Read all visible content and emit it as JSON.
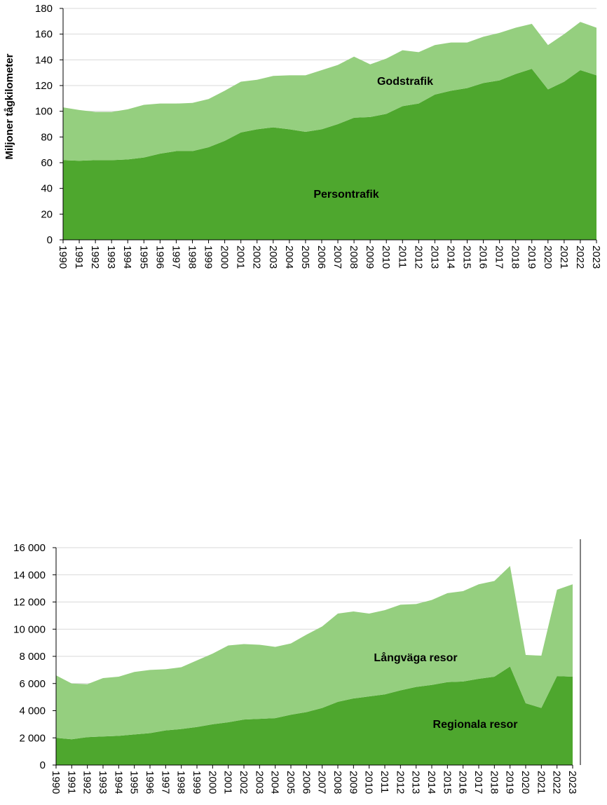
{
  "chart_data": [
    {
      "type": "area",
      "stacked": true,
      "ylabel": "Miljoner tågkilometer",
      "xlabel": "",
      "ylim": [
        0,
        180
      ],
      "yticks": [
        0,
        20,
        40,
        60,
        80,
        100,
        120,
        140,
        160,
        180
      ],
      "ytick_labels": [
        "0",
        "20",
        "40",
        "60",
        "80",
        "100",
        "120",
        "140",
        "160",
        "180"
      ],
      "grid": true,
      "x": [
        "1990",
        "1991",
        "1992",
        "1993",
        "1994",
        "1995",
        "1996",
        "1997",
        "1998",
        "1999",
        "2000",
        "2001",
        "2002",
        "2003",
        "2004",
        "2005",
        "2006",
        "2007",
        "2008",
        "2009",
        "2010",
        "2011",
        "2012",
        "2013",
        "2014",
        "2015",
        "2016",
        "2017",
        "2018",
        "2019",
        "2020",
        "2021",
        "2022",
        "2023"
      ],
      "series": [
        {
          "name": "Persontrafik",
          "color": "#4ea72e",
          "values": [
            62,
            61.5,
            62,
            62,
            62.5,
            64,
            67,
            69,
            69,
            72,
            77,
            83.5,
            86,
            87.5,
            86,
            84,
            86,
            90,
            95,
            95.5,
            98,
            104,
            106,
            113,
            116,
            118,
            122,
            124,
            129,
            133,
            117,
            123,
            132,
            128
          ]
        },
        {
          "name": "Godstrafik",
          "color": "#95cf7f",
          "values": [
            41,
            39.5,
            37.5,
            37.5,
            39,
            41,
            39,
            37,
            37.5,
            37.5,
            39,
            39.5,
            38.5,
            40,
            42,
            44,
            46,
            46,
            47.5,
            41,
            43,
            43.5,
            40,
            38.5,
            37.5,
            35.5,
            36,
            37,
            36,
            35,
            34.5,
            37,
            37.5,
            37
          ]
        }
      ]
    },
    {
      "type": "area",
      "stacked": true,
      "xlabel": "",
      "ylabel": "",
      "ylim": [
        0,
        16000
      ],
      "yticks": [
        0,
        2000,
        4000,
        6000,
        8000,
        10000,
        12000,
        14000,
        16000
      ],
      "ytick_labels": [
        "0",
        "2 000",
        "4 000",
        "6 000",
        "8 000",
        "10 000",
        "12 000",
        "14 000",
        "16 000"
      ],
      "grid": true,
      "x": [
        "1990",
        "1991",
        "1992",
        "1993",
        "1994",
        "1995",
        "1996",
        "1997",
        "1998",
        "1999",
        "2000",
        "2001",
        "2002",
        "2003",
        "2004",
        "2005",
        "2006",
        "2007",
        "2008",
        "2009",
        "2010",
        "2011",
        "2012",
        "2013",
        "2014",
        "2015",
        "2016",
        "2017",
        "2018",
        "2019",
        "2020",
        "2021",
        "2022",
        "2023"
      ],
      "series": [
        {
          "name": "Regionala resor",
          "color": "#4ea72e",
          "values": [
            2000,
            1900,
            2050,
            2100,
            2150,
            2250,
            2350,
            2550,
            2650,
            2800,
            3000,
            3150,
            3350,
            3400,
            3450,
            3700,
            3900,
            4200,
            4650,
            4900,
            5050,
            5200,
            5500,
            5750,
            5900,
            6100,
            6150,
            6350,
            6500,
            7250,
            4550,
            4200,
            6550,
            6500
          ]
        },
        {
          "name": "Långväga resor",
          "color": "#95cf7f",
          "values": [
            4600,
            4100,
            3900,
            4300,
            4350,
            4600,
            4650,
            4500,
            4550,
            4900,
            5200,
            5650,
            5550,
            5450,
            5250,
            5250,
            5700,
            6000,
            6500,
            6400,
            6100,
            6200,
            6300,
            6100,
            6250,
            6550,
            6650,
            6950,
            7050,
            7400,
            3550,
            3850,
            6350,
            6800
          ]
        }
      ]
    }
  ]
}
